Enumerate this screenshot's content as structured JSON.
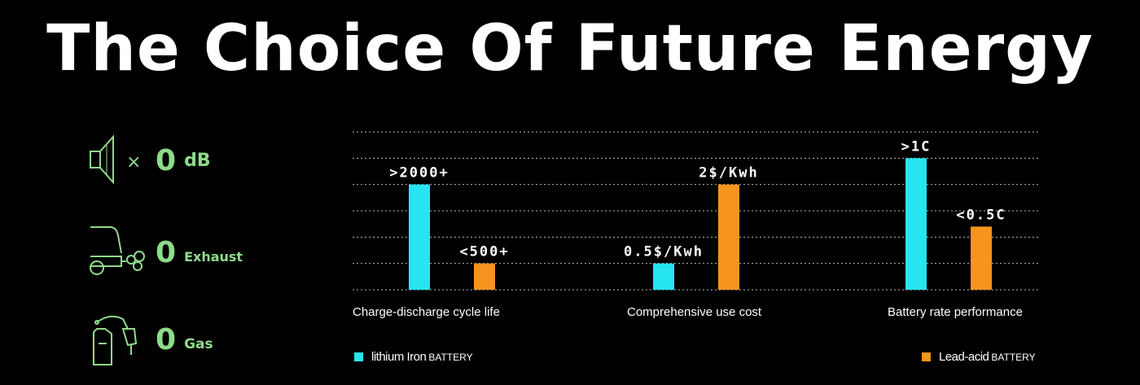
{
  "title": "The Choice Of Future Energy",
  "features": [
    {
      "icon": "speaker-mute-icon",
      "symbol": "×",
      "value": "0",
      "unit": "dB"
    },
    {
      "icon": "car-exhaust-icon",
      "value": "0",
      "unit": "Exhaust"
    },
    {
      "icon": "fuel-pump-icon",
      "value": "0",
      "unit": "Gas"
    }
  ],
  "colors": {
    "lithium": "#26e4f0",
    "lead": "#f7941d",
    "feature_green": "#8fdb8a"
  },
  "legend": {
    "lithium_name": "lithium Iron",
    "lithium_suffix": "BATTERY",
    "lead_name": "Lead-acid",
    "lead_suffix": "BATTERY"
  },
  "chart_data": {
    "type": "bar",
    "categories": [
      "Charge-discharge cycle life",
      "Comprehensive use cost",
      "Battery rate performance"
    ],
    "series": [
      {
        "name": "lithium Iron BATTERY",
        "color": "#26e4f0",
        "values": [
          4,
          1,
          5
        ],
        "labels": [
          ">2000+",
          "0.5$/Kwh",
          ">1C"
        ]
      },
      {
        "name": "Lead-acid BATTERY",
        "color": "#f7941d",
        "values": [
          1,
          4,
          2.4
        ],
        "labels": [
          "<500+",
          "2$/Kwh",
          "<0.5C"
        ]
      }
    ],
    "ylim": [
      0,
      6
    ],
    "grid": true,
    "legend_position": "bottom"
  }
}
